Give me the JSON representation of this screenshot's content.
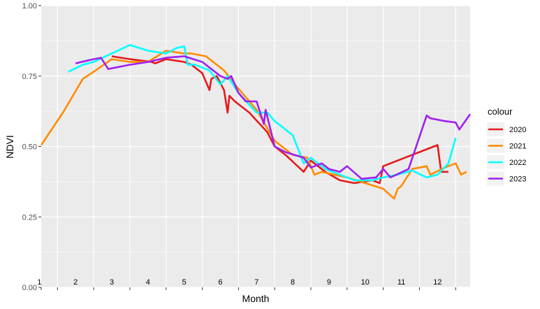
{
  "chart_data": {
    "type": "line",
    "xlabel": "Month",
    "ylabel": "NDVI",
    "xlim": [
      0.55,
      12.4
    ],
    "ylim": [
      0,
      1
    ],
    "y_ticks": [
      "0.00",
      "0.25",
      "0.50",
      "0.75",
      "1.00"
    ],
    "y_tick_values": [
      0,
      0.25,
      0.5,
      0.75,
      1
    ],
    "month_labels": [
      "1",
      "2",
      "3",
      "4",
      "5",
      "6",
      "7",
      "8",
      "9",
      "10",
      "11",
      "12"
    ],
    "grid": true,
    "panel_background": "#ebebeb",
    "legend": {
      "title": "colour",
      "placement": "right"
    },
    "series": [
      {
        "name": "2020",
        "color": "#e41a1c",
        "x": [
          2.5,
          3.0,
          3.6,
          3.7,
          4.0,
          4.5,
          4.7,
          5.0,
          5.2,
          5.25,
          5.4,
          5.6,
          5.7,
          5.75,
          5.9,
          6.3,
          6.8,
          7.0,
          7.3,
          7.8,
          8.0,
          8.4,
          8.8,
          9.2,
          9.7,
          9.9,
          10.0,
          10.6,
          11.2,
          11.5,
          11.6,
          11.8
        ],
        "y": [
          0.82,
          0.81,
          0.8,
          0.795,
          0.81,
          0.8,
          0.79,
          0.76,
          0.7,
          0.74,
          0.75,
          0.7,
          0.62,
          0.68,
          0.66,
          0.62,
          0.55,
          0.5,
          0.47,
          0.41,
          0.45,
          0.41,
          0.38,
          0.37,
          0.38,
          0.37,
          0.43,
          0.46,
          0.49,
          0.505,
          0.41,
          0.41
        ]
      },
      {
        "name": "2021",
        "color": "#ff8c00",
        "x": [
          0.55,
          1.15,
          1.7,
          2.0,
          2.5,
          3.0,
          3.5,
          4.0,
          4.5,
          4.7,
          5.1,
          5.6,
          5.9,
          6.5,
          7.0,
          7.5,
          7.9,
          8.1,
          8.3,
          9.0,
          9.5,
          10.0,
          10.3,
          10.4,
          10.5,
          10.8,
          11.2,
          11.3,
          11.7,
          12.0,
          12.15,
          12.3
        ],
        "y": [
          0.505,
          0.62,
          0.74,
          0.765,
          0.81,
          0.8,
          0.8,
          0.84,
          0.83,
          0.83,
          0.82,
          0.77,
          0.72,
          0.63,
          0.52,
          0.47,
          0.46,
          0.4,
          0.41,
          0.39,
          0.37,
          0.35,
          0.315,
          0.35,
          0.36,
          0.42,
          0.43,
          0.4,
          0.425,
          0.44,
          0.4,
          0.41
        ]
      },
      {
        "name": "2022",
        "color": "#00ffff",
        "x": [
          1.3,
          1.7,
          2.0,
          2.5,
          3.0,
          3.5,
          4.0,
          4.3,
          4.5,
          4.6,
          4.8,
          5.2,
          5.5,
          5.7,
          6.0,
          6.5,
          6.8,
          7.0,
          7.5,
          7.8,
          8.0,
          8.4,
          8.8,
          9.2,
          9.7,
          10.0,
          10.4,
          10.8,
          11.2,
          11.5,
          11.8,
          12.0
        ],
        "y": [
          0.765,
          0.79,
          0.8,
          0.83,
          0.86,
          0.84,
          0.83,
          0.85,
          0.855,
          0.79,
          0.79,
          0.77,
          0.72,
          0.75,
          0.69,
          0.62,
          0.62,
          0.59,
          0.54,
          0.44,
          0.46,
          0.42,
          0.4,
          0.38,
          0.38,
          0.39,
          0.4,
          0.415,
          0.39,
          0.4,
          0.44,
          0.53
        ]
      },
      {
        "name": "2023",
        "color": "#a020f0",
        "x": [
          1.5,
          2.0,
          2.2,
          2.4,
          3.0,
          3.5,
          4.0,
          4.5,
          5.0,
          5.5,
          5.7,
          5.8,
          6.0,
          6.2,
          6.5,
          6.7,
          6.75,
          7.0,
          7.3,
          7.8,
          8.0,
          8.3,
          8.5,
          8.8,
          9.0,
          9.4,
          9.8,
          10.0,
          10.2,
          10.7,
          11.2,
          11.3,
          11.7,
          12.0,
          12.1,
          12.4
        ],
        "y": [
          0.795,
          0.81,
          0.815,
          0.775,
          0.79,
          0.8,
          0.815,
          0.82,
          0.8,
          0.75,
          0.74,
          0.75,
          0.69,
          0.66,
          0.66,
          0.58,
          0.63,
          0.5,
          0.48,
          0.46,
          0.425,
          0.44,
          0.42,
          0.41,
          0.43,
          0.385,
          0.39,
          0.42,
          0.39,
          0.42,
          0.61,
          0.6,
          0.59,
          0.585,
          0.56,
          0.615
        ]
      }
    ]
  }
}
